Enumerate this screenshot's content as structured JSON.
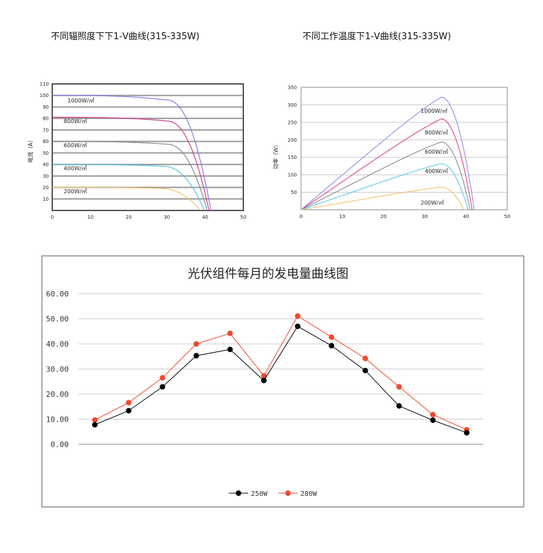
{
  "chart_data": [
    {
      "id": "iv",
      "type": "line",
      "title": "不同辐照度下下1-V曲线(315-335W)",
      "ylabel": "电流（A）",
      "xlim": [
        0,
        50
      ],
      "ylim": [
        0,
        110
      ],
      "x_ticks": [
        0,
        10,
        20,
        30,
        40,
        50
      ],
      "y_ticks": [
        10,
        20,
        30,
        40,
        50,
        60,
        70,
        80,
        90,
        100,
        110
      ],
      "grid": true,
      "series": [
        {
          "name": "1000W/㎡",
          "color": "#7f7fe6",
          "isc": 100,
          "voc": 41.5,
          "knee": 30,
          "label_at": [
            4,
            94
          ]
        },
        {
          "name": "800W/㎡",
          "color": "#d63a86",
          "isc": 81,
          "voc": 41.0,
          "knee": 30,
          "label_at": [
            3,
            76
          ]
        },
        {
          "name": "600W/㎡",
          "color": "#8a8a8a",
          "isc": 60,
          "voc": 40.5,
          "knee": 30,
          "label_at": [
            3,
            55
          ]
        },
        {
          "name": "400W/㎡",
          "color": "#52c3e0",
          "isc": 40,
          "voc": 39.8,
          "knee": 29,
          "label_at": [
            3,
            35
          ]
        },
        {
          "name": "200W/㎡",
          "color": "#f2c26b",
          "isc": 20,
          "voc": 38.8,
          "knee": 28,
          "label_at": [
            3,
            15
          ]
        }
      ]
    },
    {
      "id": "pv",
      "type": "line",
      "title": "不同工作温度下1-V曲线(315-335W)",
      "ylabel": "功率（W）",
      "xlim": [
        0,
        50
      ],
      "ylim": [
        0,
        350
      ],
      "x_ticks": [
        0,
        10,
        20,
        30,
        40,
        50
      ],
      "y_ticks": [
        50,
        100,
        150,
        200,
        250,
        300,
        350
      ],
      "grid": true,
      "series": [
        {
          "name": "1000W/㎡",
          "color": "#8c8cf0",
          "pmax": 322,
          "vmp": 34,
          "voc": 42,
          "label_at": [
            29,
            277
          ]
        },
        {
          "name": "800W/㎡",
          "color": "#e0408a",
          "pmax": 260,
          "vmp": 34,
          "voc": 41.5,
          "label_at": [
            30,
            215
          ]
        },
        {
          "name": "600W/㎡",
          "color": "#8a8a8a",
          "pmax": 194,
          "vmp": 34,
          "voc": 41,
          "label_at": [
            30,
            160
          ]
        },
        {
          "name": "400W/㎡",
          "color": "#5ac8e6",
          "pmax": 132,
          "vmp": 34,
          "voc": 40.5,
          "label_at": [
            30,
            105
          ]
        },
        {
          "name": "200W/㎡",
          "color": "#f2c26b",
          "pmax": 65,
          "vmp": 34,
          "voc": 39.5,
          "label_at": [
            29,
            15
          ]
        }
      ]
    },
    {
      "id": "monthly",
      "type": "line",
      "title": "光伏组件每月的发电量曲线图",
      "ylim": [
        0,
        60
      ],
      "y_ticks": [
        0,
        10,
        20,
        30,
        40,
        50,
        60
      ],
      "y_tick_labels": [
        "0.00",
        "10.00",
        "20.00",
        "30.00",
        "40.00",
        "50.00",
        "60.00"
      ],
      "grid": true,
      "legend": "bottom-center",
      "series": [
        {
          "name": "250W",
          "color": "#000000",
          "values": [
            7.8,
            13.4,
            22.9,
            35.3,
            37.8,
            25.4,
            47.0,
            39.3,
            29.4,
            15.3,
            9.6,
            4.6
          ]
        },
        {
          "name": "280W",
          "color": "#f04a2a",
          "values": [
            9.7,
            16.6,
            26.5,
            40.0,
            44.2,
            27.3,
            51.1,
            42.7,
            34.2,
            22.9,
            11.8,
            5.8
          ]
        }
      ]
    }
  ]
}
